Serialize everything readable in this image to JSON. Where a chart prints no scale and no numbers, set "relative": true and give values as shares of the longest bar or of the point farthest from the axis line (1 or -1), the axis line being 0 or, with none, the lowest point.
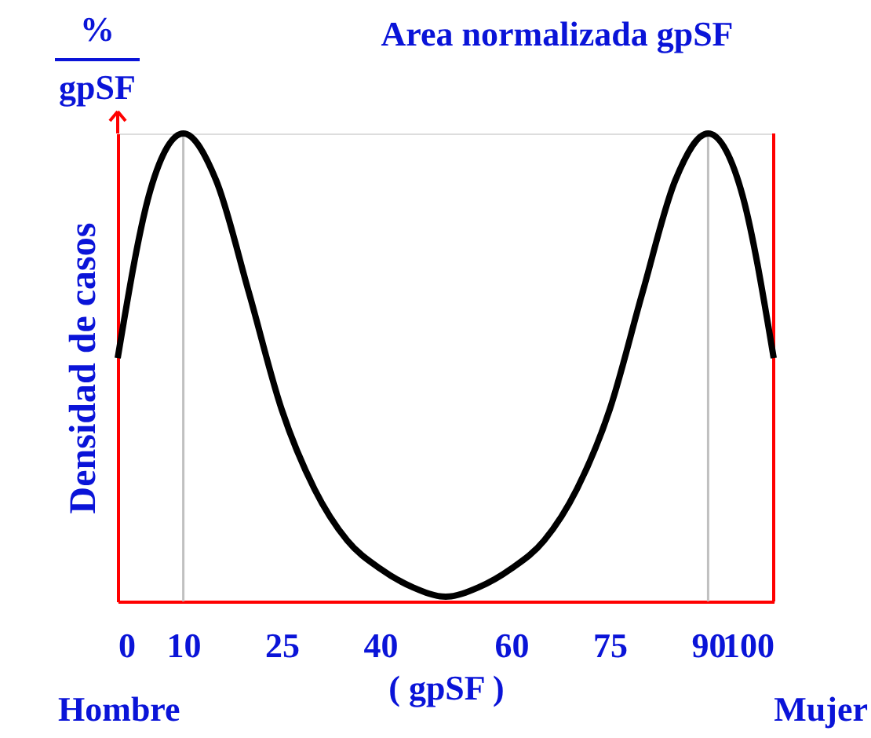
{
  "chart_data": {
    "type": "line",
    "title": "Area normalizada gpSF",
    "relative": true,
    "x": [
      0,
      5,
      10,
      15,
      20,
      25,
      30,
      35,
      40,
      45,
      50,
      55,
      60,
      65,
      70,
      75,
      80,
      85,
      90,
      95,
      100
    ],
    "series": [
      {
        "color": "#000000",
        "values": [
          0.52,
          0.88,
          1,
          0.9,
          0.66,
          0.41,
          0.24,
          0.13,
          0.07,
          0.03,
          0.01,
          0.03,
          0.07,
          0.13,
          0.24,
          0.41,
          0.66,
          0.9,
          1,
          0.88,
          0.52
        ]
      }
    ],
    "xlim": [
      0,
      100
    ],
    "xticks": [
      0,
      10,
      25,
      40,
      60,
      75,
      90,
      100
    ],
    "xlabel": "( gpSF )",
    "ylabel": "Densidad de casos",
    "ref_lines": [
      {
        "axis": "x",
        "value": 10,
        "color": "#c0c0c0"
      },
      {
        "axis": "x",
        "value": 90,
        "color": "#c0c0c0"
      },
      {
        "axis": "x",
        "value": 100,
        "color": "#ff0000"
      }
    ],
    "annotations": [
      "Hombre",
      "Mujer",
      "%",
      "gpSF"
    ],
    "grid": false,
    "legend": false,
    "marker": "none",
    "line_style": "solid"
  }
}
